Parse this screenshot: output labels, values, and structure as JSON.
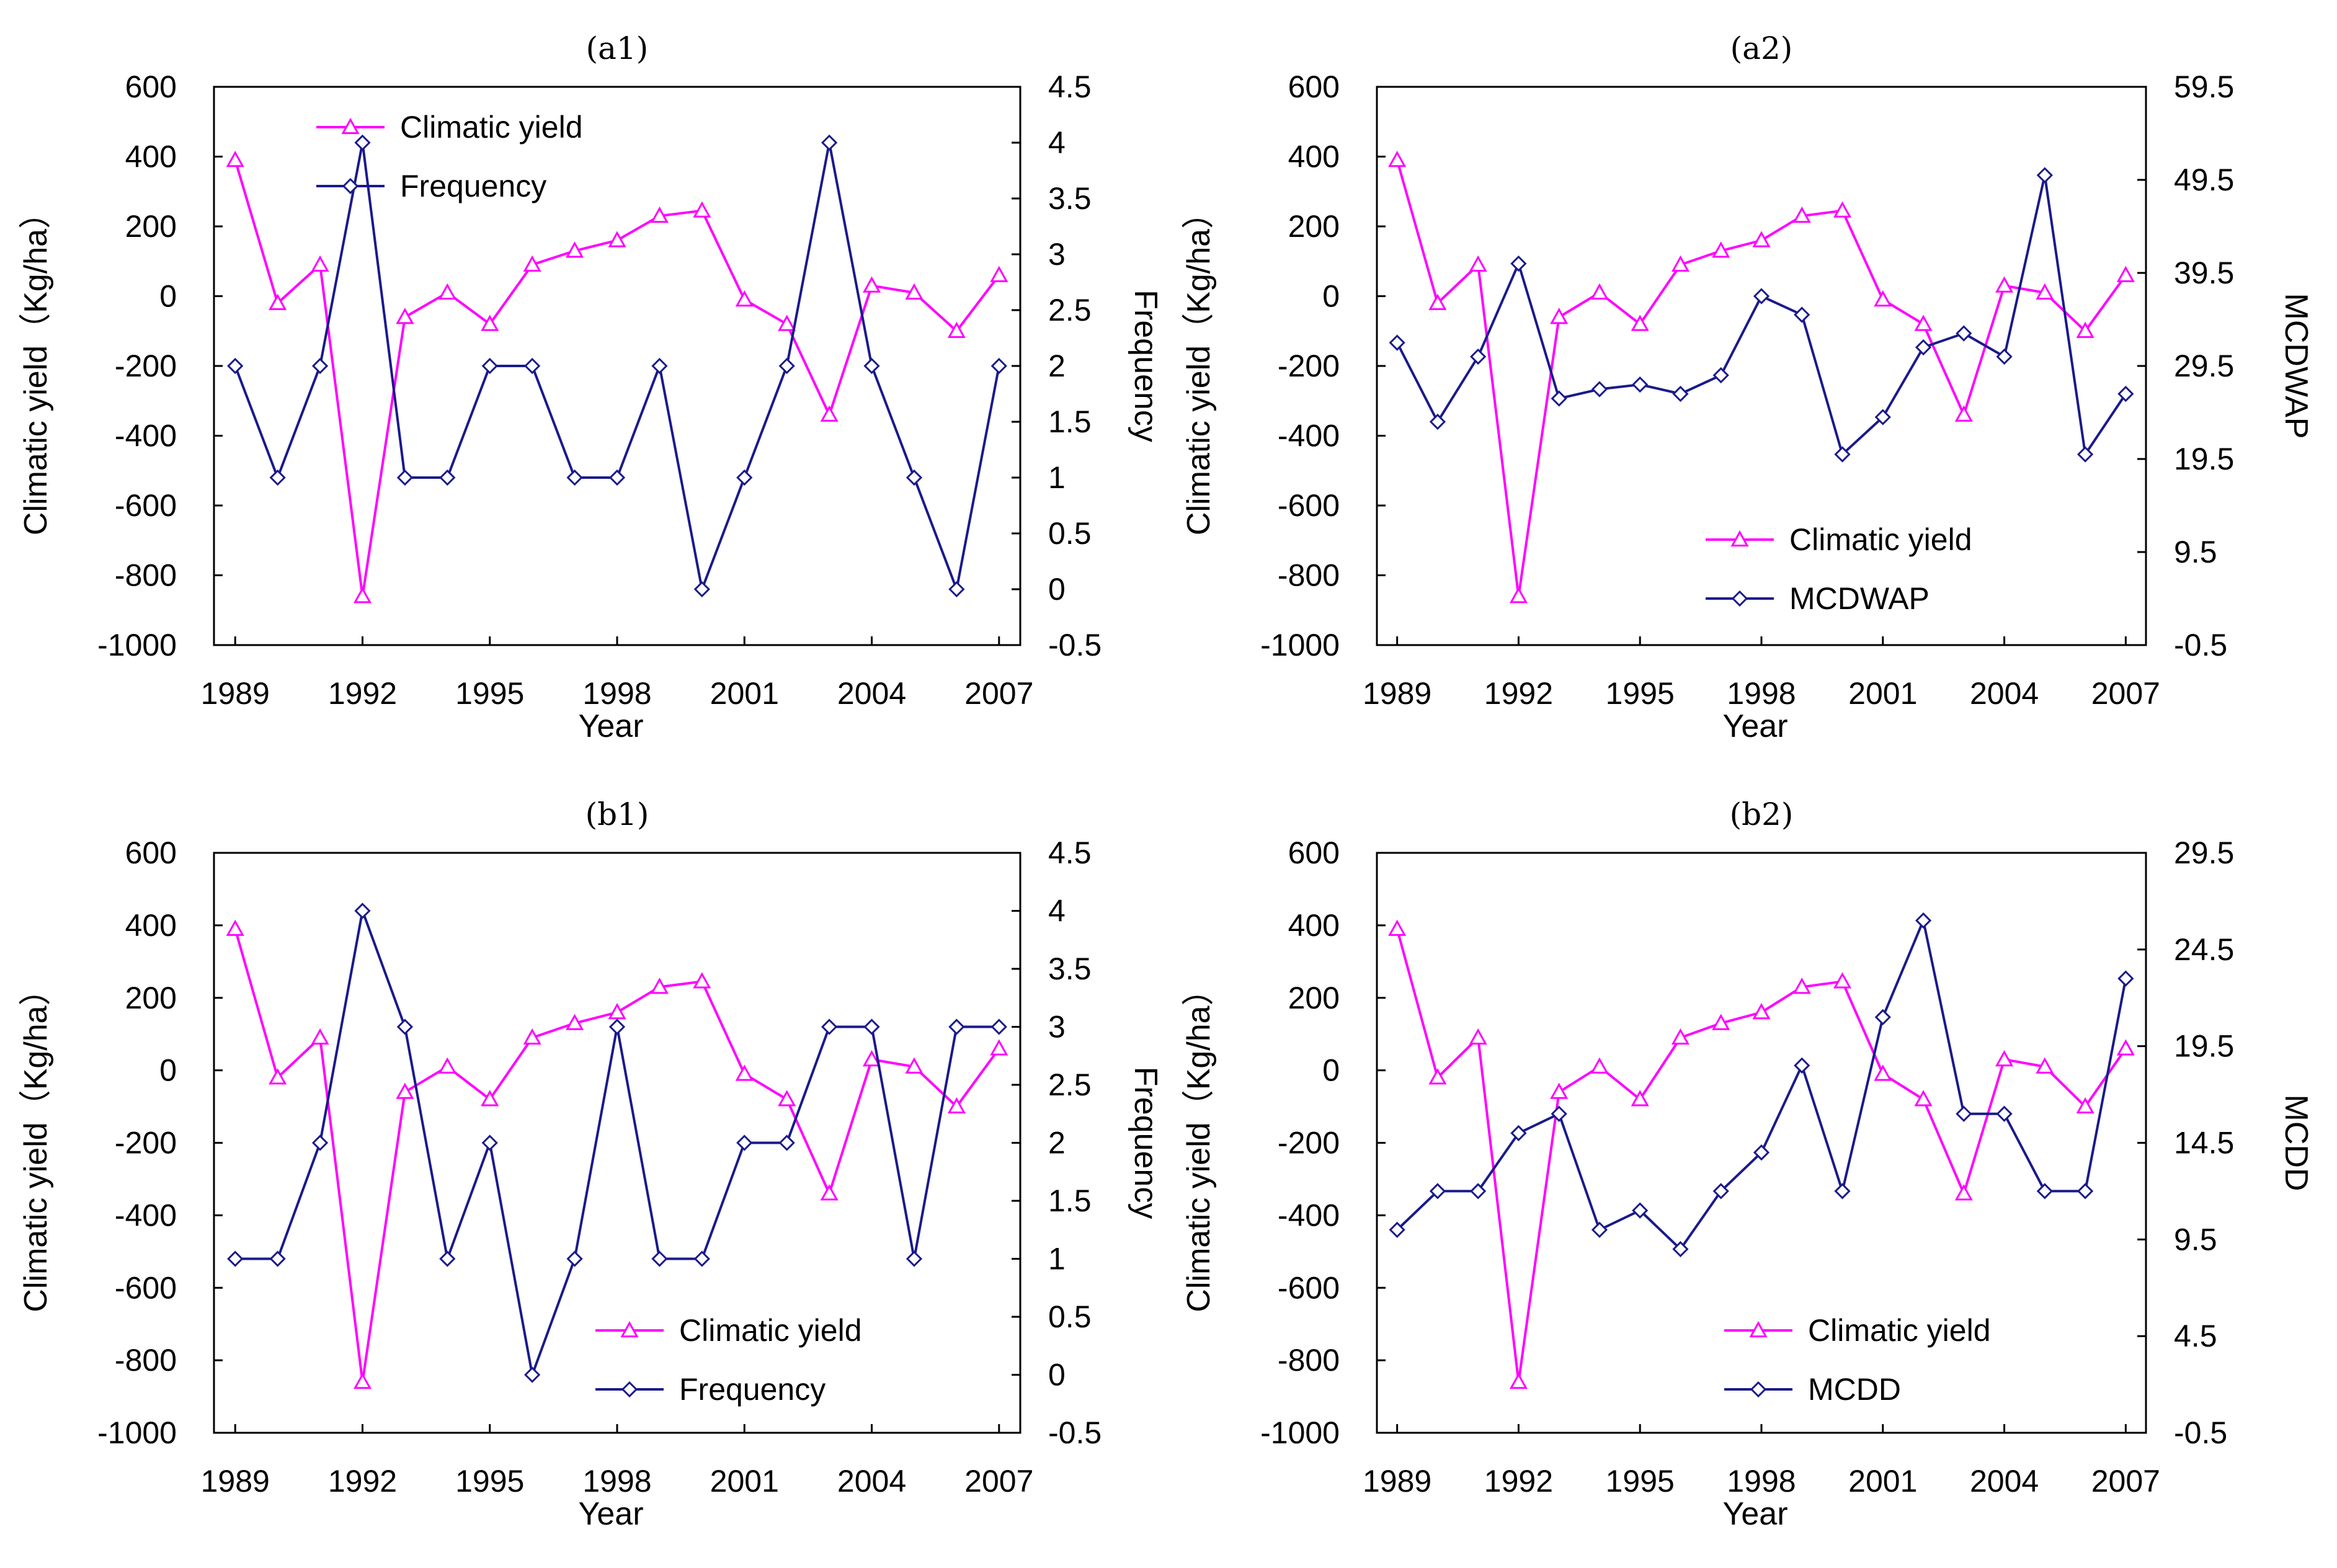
{
  "chart_data": [
    {
      "panel": "(a1)",
      "type": "line",
      "title": "(a1)",
      "xlabel": "Year",
      "ylabel": "Climatic yield（Kg/ha）",
      "y2label": "Frequency",
      "xlim": [
        1988.5,
        2007.5
      ],
      "xticks": [
        1989,
        1992,
        1995,
        1998,
        2001,
        2004,
        2007
      ],
      "ylim": [
        -1000,
        600
      ],
      "yticks": [
        -1000,
        -800,
        -600,
        -400,
        -200,
        0,
        200,
        400,
        600
      ],
      "y2lim": [
        -0.5,
        4.5
      ],
      "y2ticks": [
        -0.5,
        0,
        0.5,
        1,
        1.5,
        2,
        2.5,
        3,
        3.5,
        4,
        4.5
      ],
      "legend": "top-left",
      "x": [
        1989,
        1990,
        1991,
        1992,
        1993,
        1994,
        1995,
        1996,
        1997,
        1998,
        1999,
        2000,
        2001,
        2002,
        2003,
        2004,
        2005,
        2006,
        2007
      ],
      "series": [
        {
          "name": "Climatic yield",
          "axis": "left",
          "color": "#ff00ff",
          "marker": "triangle",
          "values": [
            390,
            -20,
            90,
            -860,
            -60,
            10,
            -80,
            90,
            130,
            160,
            230,
            245,
            -10,
            -80,
            -340,
            30,
            10,
            -100,
            60
          ]
        },
        {
          "name": "Frequency",
          "axis": "right",
          "color": "#1a1a8c",
          "marker": "diamond",
          "values": [
            2,
            1,
            2,
            4,
            1,
            1,
            2,
            2,
            1,
            1,
            2,
            0,
            1,
            2,
            4,
            2,
            1,
            0,
            2
          ]
        }
      ]
    },
    {
      "panel": "(a2)",
      "type": "line",
      "title": "(a2)",
      "xlabel": "Year",
      "ylabel": "Climatic yield（Kg/ha）",
      "y2label": "MCDWAP",
      "xlim": [
        1988.5,
        2007.5
      ],
      "xticks": [
        1989,
        1992,
        1995,
        1998,
        2001,
        2004,
        2007
      ],
      "ylim": [
        -1000,
        600
      ],
      "yticks": [
        -1000,
        -800,
        -600,
        -400,
        -200,
        0,
        200,
        400,
        600
      ],
      "y2lim": [
        -0.5,
        59.5
      ],
      "y2ticks": [
        -0.5,
        9.5,
        19.5,
        29.5,
        39.5,
        49.5,
        59.5
      ],
      "legend": "bottom-right",
      "x": [
        1989,
        1990,
        1991,
        1992,
        1993,
        1994,
        1995,
        1996,
        1997,
        1998,
        1999,
        2000,
        2001,
        2002,
        2003,
        2004,
        2005,
        2006,
        2007
      ],
      "series": [
        {
          "name": "Climatic yield",
          "axis": "left",
          "color": "#ff00ff",
          "marker": "triangle",
          "values": [
            390,
            -20,
            90,
            -860,
            -60,
            10,
            -80,
            90,
            130,
            160,
            230,
            245,
            -10,
            -80,
            -340,
            30,
            10,
            -100,
            60
          ]
        },
        {
          "name": "MCDWAP",
          "axis": "right",
          "color": "#1a1a8c",
          "marker": "diamond",
          "values": [
            32,
            23.5,
            30.5,
            40.5,
            26,
            27,
            27.5,
            26.5,
            28.5,
            37,
            35,
            20,
            24,
            31.5,
            33,
            30.5,
            50,
            20,
            26.5
          ]
        }
      ]
    },
    {
      "panel": "(b1)",
      "type": "line",
      "title": "(b1)",
      "xlabel": "Year",
      "ylabel": "Climatic yield（Kg/ha）",
      "y2label": "Frequency",
      "xlim": [
        1988.5,
        2007.5
      ],
      "xticks": [
        1989,
        1992,
        1995,
        1998,
        2001,
        2004,
        2007
      ],
      "ylim": [
        -1000,
        600
      ],
      "yticks": [
        -1000,
        -800,
        -600,
        -400,
        -200,
        0,
        200,
        400,
        600
      ],
      "y2lim": [
        -0.5,
        4.5
      ],
      "y2ticks": [
        -0.5,
        0,
        0.5,
        1,
        1.5,
        2,
        2.5,
        3,
        3.5,
        4,
        4.5
      ],
      "legend": "bottom-right",
      "x": [
        1989,
        1990,
        1991,
        1992,
        1993,
        1994,
        1995,
        1996,
        1997,
        1998,
        1999,
        2000,
        2001,
        2002,
        2003,
        2004,
        2005,
        2006,
        2007
      ],
      "series": [
        {
          "name": "Climatic yield",
          "axis": "left",
          "color": "#ff00ff",
          "marker": "triangle",
          "values": [
            390,
            -20,
            90,
            -860,
            -60,
            10,
            -80,
            90,
            130,
            160,
            230,
            245,
            -10,
            -80,
            -340,
            30,
            10,
            -100,
            60
          ]
        },
        {
          "name": "Frequency",
          "axis": "right",
          "color": "#1a1a8c",
          "marker": "diamond",
          "values": [
            1,
            1,
            2,
            4,
            3,
            1,
            2,
            0,
            1,
            3,
            1,
            1,
            2,
            2,
            3,
            3,
            1,
            3,
            3
          ]
        }
      ]
    },
    {
      "panel": "(b2)",
      "type": "line",
      "title": "(b2)",
      "xlabel": "Year",
      "ylabel": "Climatic yield（Kg/ha）",
      "y2label": "MCDD",
      "xlim": [
        1988.5,
        2007.5
      ],
      "xticks": [
        1989,
        1992,
        1995,
        1998,
        2001,
        2004,
        2007
      ],
      "ylim": [
        -1000,
        600
      ],
      "yticks": [
        -1000,
        -800,
        -600,
        -400,
        -200,
        0,
        200,
        400,
        600
      ],
      "y2lim": [
        -0.5,
        29.5
      ],
      "y2ticks": [
        -0.5,
        4.5,
        9.5,
        14.5,
        19.5,
        24.5,
        29.5
      ],
      "legend": "bottom-right",
      "x": [
        1989,
        1990,
        1991,
        1992,
        1993,
        1994,
        1995,
        1996,
        1997,
        1998,
        1999,
        2000,
        2001,
        2002,
        2003,
        2004,
        2005,
        2006,
        2007
      ],
      "series": [
        {
          "name": "Climatic yield",
          "axis": "left",
          "color": "#ff00ff",
          "marker": "triangle",
          "values": [
            390,
            -20,
            90,
            -860,
            -60,
            10,
            -80,
            90,
            130,
            160,
            230,
            245,
            -10,
            -80,
            -340,
            30,
            10,
            -100,
            60
          ]
        },
        {
          "name": "MCDD",
          "axis": "right",
          "color": "#1a1a8c",
          "marker": "diamond",
          "values": [
            10,
            12,
            12,
            15,
            16,
            10,
            11,
            9,
            12,
            14,
            18.5,
            12,
            21,
            26,
            16,
            16,
            12,
            12,
            23
          ]
        }
      ]
    }
  ]
}
